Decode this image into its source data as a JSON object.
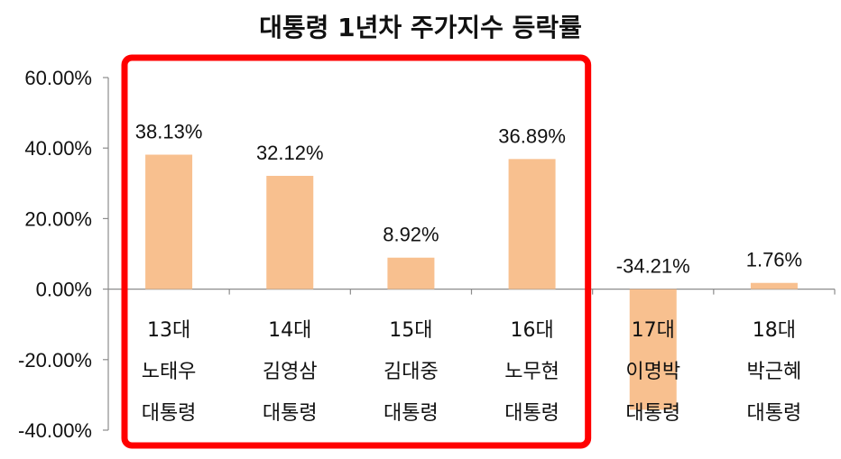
{
  "chart_data": {
    "type": "bar",
    "title": "대통령 1년차 주가지수 등락률",
    "categories": [
      [
        "13대",
        "노태우",
        "대통령"
      ],
      [
        "14대",
        "김영삼",
        "대통령"
      ],
      [
        "15대",
        "김대중",
        "대통령"
      ],
      [
        "16대",
        "노무현",
        "대통령"
      ],
      [
        "17대",
        "이명박",
        "대통령"
      ],
      [
        "18대",
        "박근혜",
        "대통령"
      ]
    ],
    "values": [
      38.13,
      32.12,
      8.92,
      36.89,
      -34.21,
      1.76
    ],
    "data_labels": [
      "38.13%",
      "32.12%",
      "8.92%",
      "36.89%",
      "-34.21%",
      "1.76%"
    ],
    "y_ticks": [
      60,
      40,
      20,
      0,
      -20,
      -40
    ],
    "y_tick_labels": [
      "60.00%",
      "40.00%",
      "20.00%",
      "0.00%",
      "-20.00%",
      "-40.00%"
    ],
    "ylim": [
      -40,
      60
    ],
    "xlabel": "",
    "ylabel": "",
    "grid": false,
    "legend": "none",
    "highlight": {
      "from_index": 0,
      "to_index": 3,
      "color": "#ff0000"
    },
    "colors": {
      "bar": "#f8c08f",
      "axis": "#8c8c8c",
      "text": "#111111"
    }
  }
}
